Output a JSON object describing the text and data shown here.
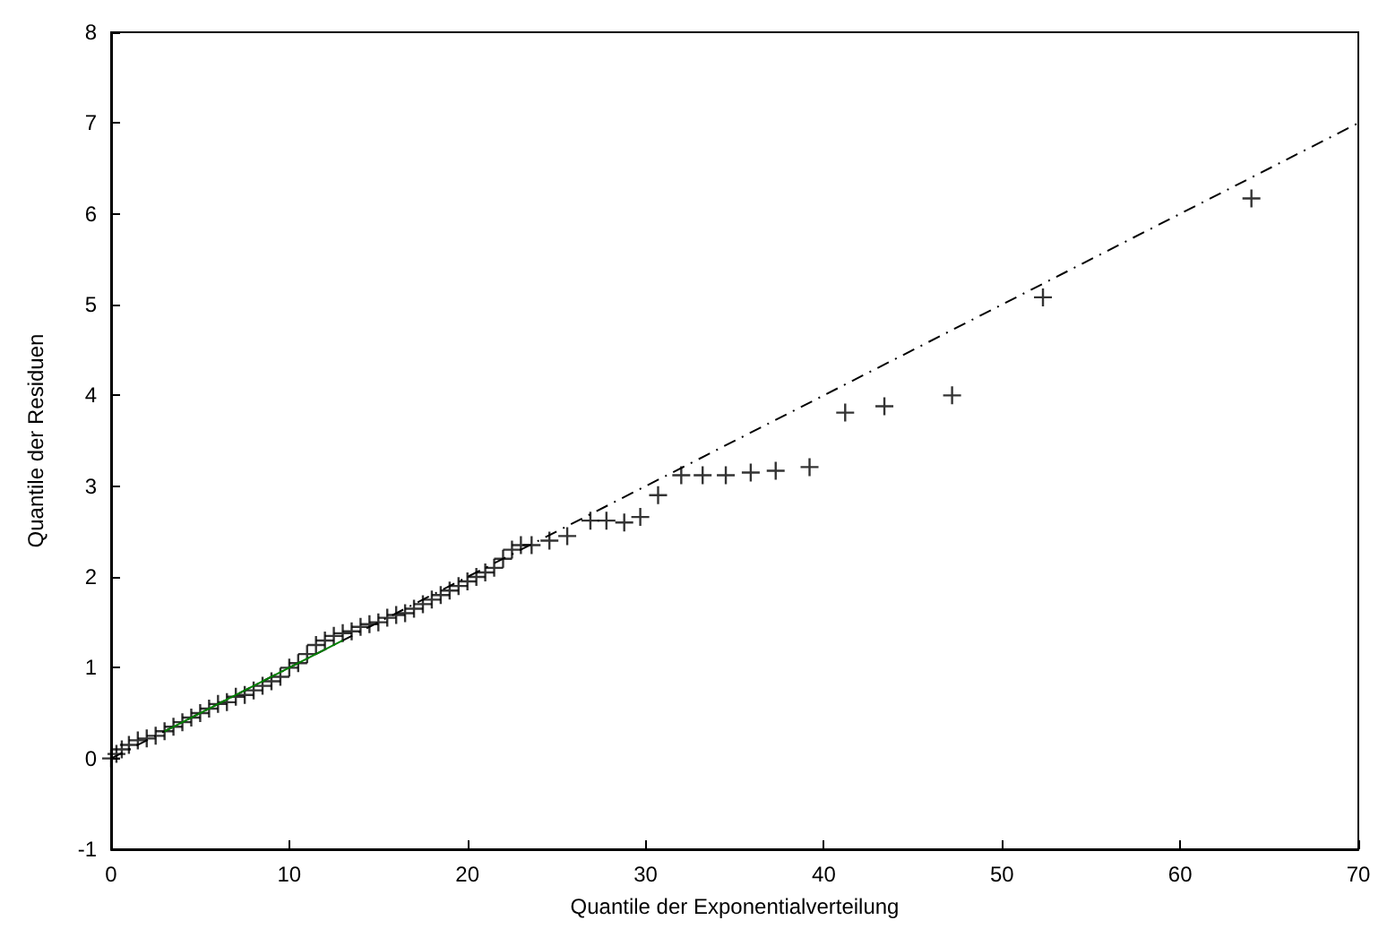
{
  "chart_data": {
    "type": "scatter",
    "xlabel": "Quantile der Exponentialverteilung",
    "ylabel": "Quantile der Residuen",
    "xlim": [
      0,
      70
    ],
    "xticks": [
      0,
      10,
      20,
      30,
      40,
      50,
      60,
      70
    ],
    "ylim": [
      -1,
      8
    ],
    "yticks": [
      -1,
      0,
      1,
      2,
      3,
      4,
      5,
      6,
      7,
      8
    ],
    "grid": false,
    "series": [
      {
        "type": "line",
        "color": "#000000",
        "line_style": "dashed",
        "marker": "none",
        "x": [
          0,
          70
        ],
        "values": [
          0,
          7
        ]
      },
      {
        "color": "#000000",
        "marker": "cross",
        "x": [
          0,
          0.3,
          0.6,
          1,
          1.5,
          2,
          2.5,
          3,
          3.5,
          4,
          4.5,
          5,
          5.5,
          6,
          6.5,
          7,
          7.5,
          8,
          8.5,
          9,
          9.5,
          10,
          10.5,
          11,
          11.5,
          12,
          12.5,
          13,
          13.5,
          14,
          14.5,
          15,
          15.5,
          16,
          16.5,
          17,
          17.5,
          18,
          18.5,
          19,
          19.5,
          20,
          20.5,
          21,
          21.5,
          22,
          22.5,
          23,
          23.6,
          24.6,
          25.6,
          26.9,
          27.8,
          28.8,
          29.7,
          30.7,
          32,
          33.2,
          34.5,
          35.9,
          37.3,
          39.2,
          41.2,
          43.4,
          47.2,
          52.3,
          64
        ],
        "values": [
          0,
          0.05,
          0.1,
          0.15,
          0.2,
          0.22,
          0.25,
          0.3,
          0.35,
          0.4,
          0.45,
          0.5,
          0.55,
          0.6,
          0.62,
          0.68,
          0.7,
          0.75,
          0.8,
          0.85,
          0.9,
          1,
          1.05,
          1.15,
          1.25,
          1.3,
          1.35,
          1.38,
          1.4,
          1.45,
          1.48,
          1.5,
          1.55,
          1.58,
          1.6,
          1.65,
          1.7,
          1.75,
          1.8,
          1.85,
          1.9,
          1.95,
          2,
          2.05,
          2.1,
          2.2,
          2.3,
          2.35,
          2.35,
          2.4,
          2.45,
          2.62,
          2.62,
          2.6,
          2.66,
          2.9,
          3.12,
          3.12,
          3.12,
          3.15,
          3.17,
          3.21,
          3.81,
          3.88,
          4,
          5.08,
          6.17
        ]
      },
      {
        "type": "line",
        "color": "#008000",
        "line_style": "solid",
        "marker": "none",
        "x": [
          3,
          13
        ],
        "values": [
          0.3,
          1.3
        ]
      }
    ]
  }
}
